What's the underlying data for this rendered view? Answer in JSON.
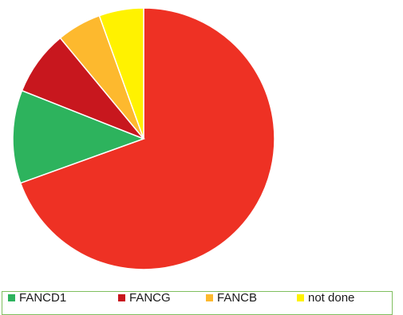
{
  "chart_data": {
    "type": "pie",
    "title": "",
    "legend_position": "bottom",
    "slices": [
      {
        "label": "",
        "value": 69.5,
        "color": "#ee3124"
      },
      {
        "label": "FANCD1",
        "value": 11.5,
        "color": "#2db35d"
      },
      {
        "label": "FANCG",
        "value": 8,
        "color": "#c8171e"
      },
      {
        "label": "FANCB",
        "value": 5.5,
        "color": "#fdb92e"
      },
      {
        "label": "not done",
        "value": 5.5,
        "color": "#fff200"
      }
    ],
    "legend": [
      {
        "label": "FANCD1",
        "color": "#2db35d"
      },
      {
        "label": "FANCG",
        "color": "#c8171e"
      },
      {
        "label": "FANCB",
        "color": "#fdb92e"
      },
      {
        "label": "not done",
        "color": "#fff200"
      }
    ]
  }
}
